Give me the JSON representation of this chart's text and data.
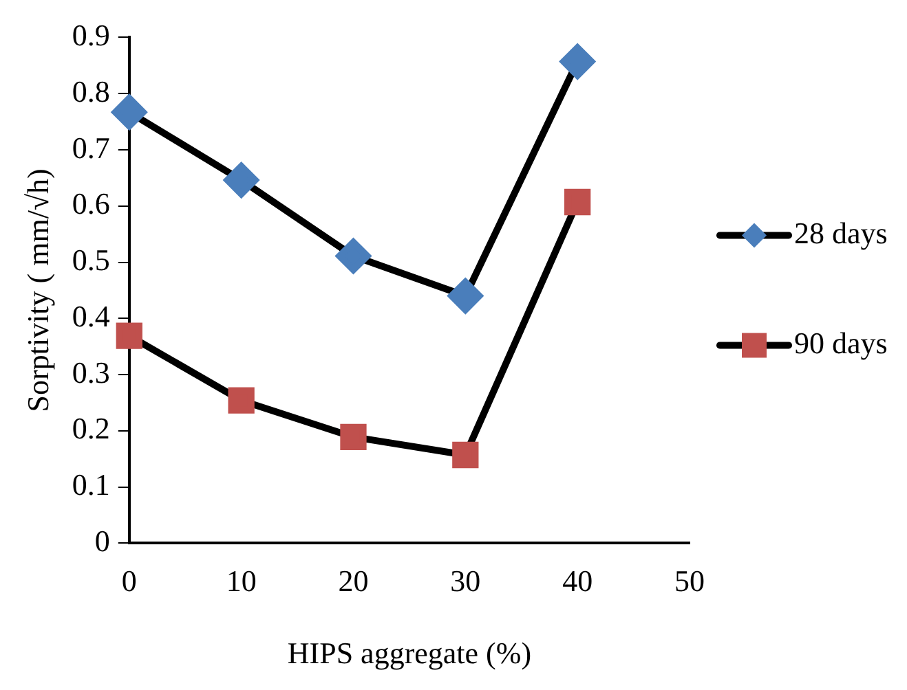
{
  "chart_data": {
    "type": "line",
    "xlabel": "HIPS aggregate (%)",
    "ylabel": "Sorptivity ( mm/√h)",
    "x": [
      0,
      10,
      20,
      30,
      40
    ],
    "series": [
      {
        "name": "28 days",
        "color": "#4a7ebb",
        "values": [
          0.767,
          0.646,
          0.511,
          0.44,
          0.857
        ],
        "marker": "diamond"
      },
      {
        "name": "90 days",
        "color": "#c0504d",
        "values": [
          0.369,
          0.254,
          0.189,
          0.157,
          0.607
        ],
        "marker": "square"
      }
    ],
    "xlim": [
      0,
      50
    ],
    "xticks": [
      0,
      10,
      20,
      30,
      40,
      50
    ],
    "ylim": [
      0,
      0.9
    ],
    "yticks": [
      0,
      0.1,
      0.2,
      0.3,
      0.4,
      0.5,
      0.6,
      0.7,
      0.8,
      0.9
    ],
    "grid": false,
    "legend": "right"
  }
}
